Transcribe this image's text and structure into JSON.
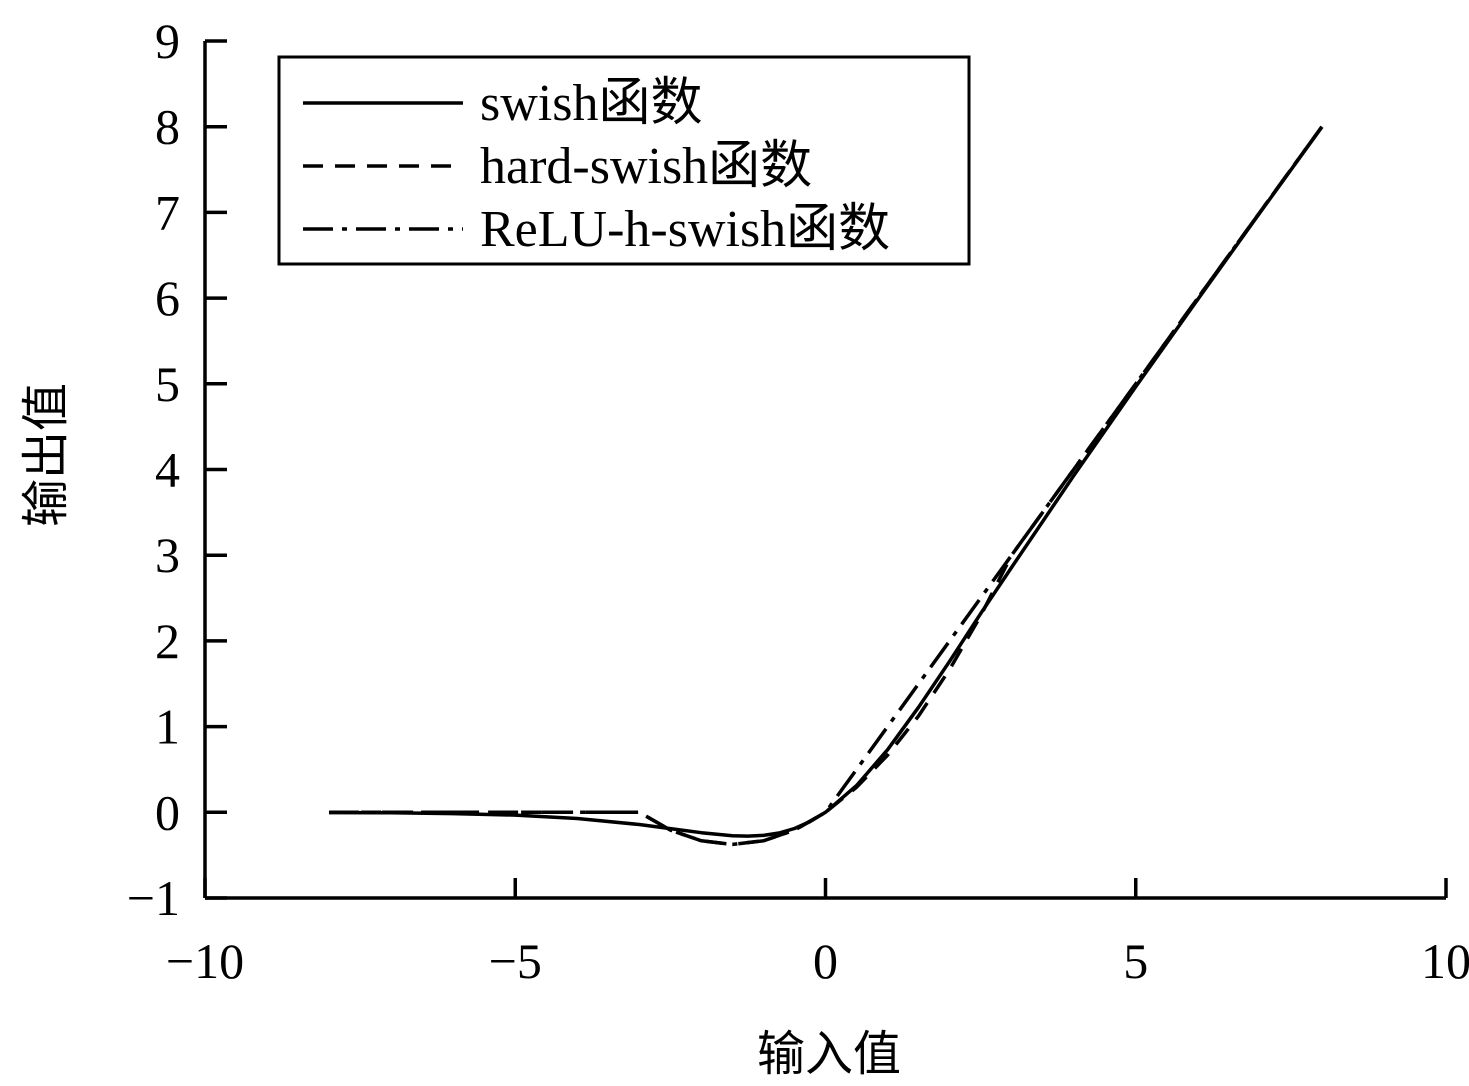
{
  "chart_data": {
    "type": "line",
    "title": "",
    "xlabel": "输入值",
    "ylabel": "输出值",
    "xlim": [
      -10,
      10
    ],
    "ylim": [
      -1,
      9
    ],
    "xticks": [
      -10,
      -5,
      0,
      5,
      10
    ],
    "xtick_labels": [
      "−10",
      "−5",
      "0",
      "5",
      "10"
    ],
    "yticks": [
      -1,
      0,
      1,
      2,
      3,
      4,
      5,
      6,
      7,
      8,
      9
    ],
    "ytick_labels": [
      "−1",
      "0",
      "1",
      "2",
      "3",
      "4",
      "5",
      "6",
      "7",
      "8",
      "9"
    ],
    "grid": false,
    "legend_position": "top-left",
    "series": [
      {
        "name": "swish函数",
        "style": "solid",
        "x": [
          -8,
          -7,
          -6,
          -5,
          -4,
          -3,
          -2.5,
          -2,
          -1.5,
          -1.25,
          -1,
          -0.75,
          -0.5,
          -0.25,
          0,
          0.5,
          1,
          1.5,
          2,
          2.5,
          3,
          4,
          5,
          6,
          7,
          8
        ],
        "y": [
          -0.003,
          -0.006,
          -0.015,
          -0.033,
          -0.072,
          -0.142,
          -0.19,
          -0.238,
          -0.274,
          -0.278,
          -0.269,
          -0.241,
          -0.189,
          -0.109,
          0,
          0.311,
          0.731,
          1.226,
          1.762,
          2.317,
          2.858,
          3.928,
          4.967,
          5.985,
          6.994,
          7.997
        ]
      },
      {
        "name": "hard-swish函数",
        "style": "dashed",
        "x": [
          -8,
          -3,
          -2.5,
          -2,
          -1.5,
          -1,
          -0.5,
          0,
          0.5,
          1,
          1.5,
          2,
          2.5,
          3,
          4,
          5,
          6,
          7,
          8
        ],
        "y": [
          0,
          0,
          -0.208,
          -0.333,
          -0.375,
          -0.333,
          -0.208,
          0,
          0.292,
          0.667,
          1.125,
          1.667,
          2.292,
          3,
          4,
          5,
          6,
          7,
          8
        ]
      },
      {
        "name": "ReLU-h-swish函数",
        "style": "dashdot",
        "x": [
          -8,
          -3,
          -2.5,
          -2,
          -1.5,
          -1,
          -0.5,
          0,
          1,
          2,
          3,
          4,
          5,
          6,
          7,
          8
        ],
        "y": [
          0,
          0,
          -0.208,
          -0.333,
          -0.375,
          -0.333,
          -0.208,
          0,
          1,
          2,
          3,
          4,
          5,
          6,
          7,
          8
        ]
      }
    ]
  }
}
